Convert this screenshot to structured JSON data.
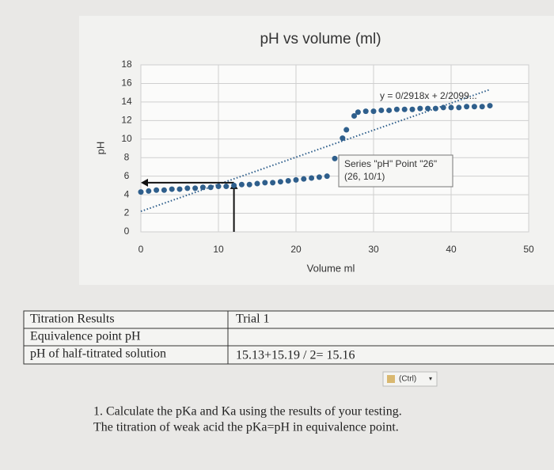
{
  "chart_data": {
    "type": "scatter",
    "title": "pH vs volume (ml)",
    "x_label": "Volume ml",
    "y_label": "pH",
    "x": [
      0,
      1,
      2,
      3,
      4,
      5,
      6,
      7,
      8,
      9,
      10,
      11,
      12,
      13,
      14,
      15,
      16,
      17,
      18,
      19,
      20,
      21,
      22,
      23,
      24,
      25,
      26,
      26.5,
      27.5,
      28,
      29,
      30,
      31,
      32,
      33,
      34,
      35,
      36,
      37,
      38,
      39,
      40,
      41,
      42,
      43,
      44,
      45
    ],
    "values": [
      4.3,
      4.4,
      4.5,
      4.5,
      4.6,
      4.6,
      4.7,
      4.7,
      4.8,
      4.8,
      4.9,
      4.9,
      5.0,
      5.1,
      5.1,
      5.2,
      5.3,
      5.3,
      5.4,
      5.5,
      5.6,
      5.7,
      5.8,
      5.9,
      6.0,
      7.9,
      10.1,
      11.0,
      12.5,
      12.9,
      13.0,
      13.0,
      13.1,
      13.1,
      13.2,
      13.2,
      13.2,
      13.3,
      13.3,
      13.3,
      13.4,
      13.4,
      13.4,
      13.5,
      13.5,
      13.5,
      13.6
    ],
    "color": "#2f5f8c",
    "xlim": [
      0,
      50
    ],
    "xticks": [
      0,
      10,
      20,
      30,
      40,
      50
    ],
    "ylim": [
      0,
      18
    ],
    "yticks": [
      0,
      2,
      4,
      6,
      8,
      10,
      12,
      14,
      16,
      18
    ],
    "grid": true,
    "trendline": {
      "label": "y = 0/2918x + 2/2099...",
      "slope": 0.2918,
      "intercept": 2.2099
    },
    "guide": {
      "x": 12,
      "y": 5.3
    },
    "tooltip": [
      "Series \"pH\" Point \"26\"",
      "(26, 10/1)"
    ]
  },
  "table": {
    "rows": [
      [
        "Titration Results",
        "Trial 1"
      ],
      [
        "Equivalence point pH"
      ],
      [
        "pH of half-titrated solution",
        "15.13+15.19 / 2= 15.16"
      ]
    ]
  },
  "paste_button": "(Ctrl)",
  "questions": [
    "1. Calculate the pKa and Ka using the results of your testing.",
    "The titration of weak acid the pKa=pH in equivalence point."
  ]
}
